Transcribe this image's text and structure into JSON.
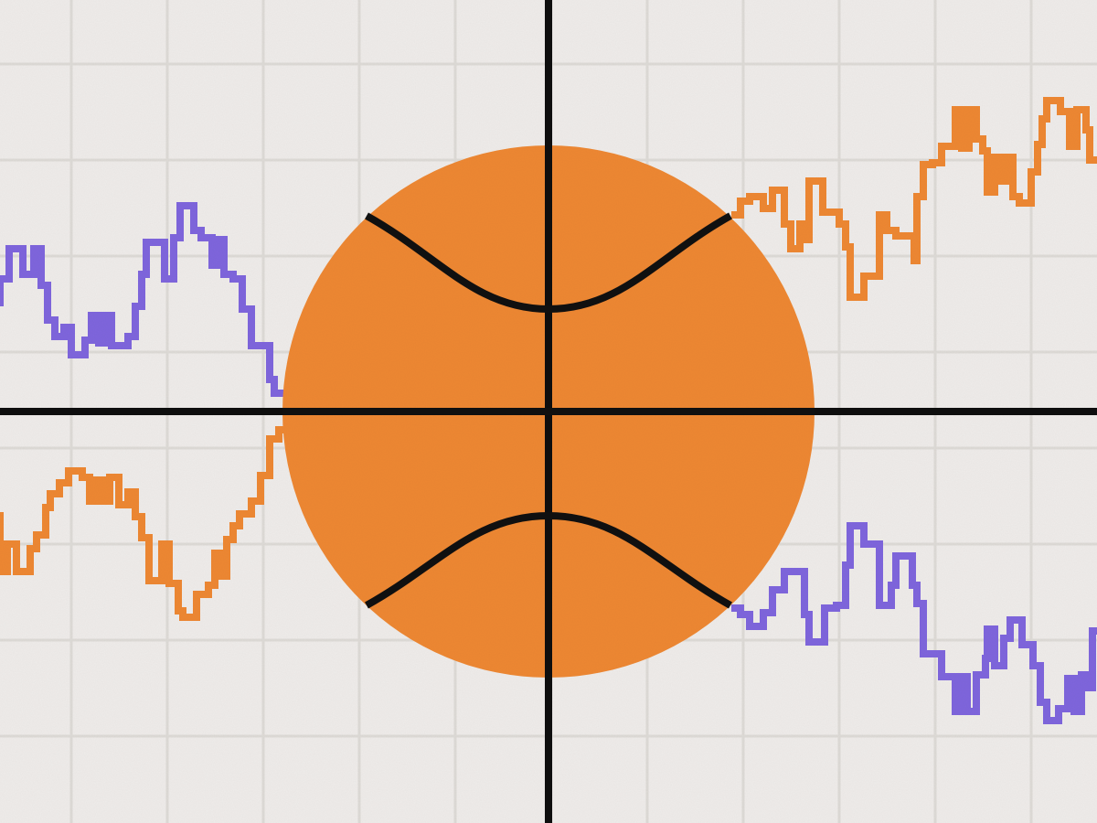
{
  "illustration": {
    "subject": "basketball-over-step-line-charts",
    "colors": {
      "background": "#efecea",
      "grid": "#dedbd7",
      "axis": "#0f0f0f",
      "ball": "#ee8833",
      "ball_seam": "#111111",
      "purple_line": "#7f66dd",
      "orange_line": "#ee8833"
    },
    "step_lines": [
      {
        "id": "top-left",
        "color": "purple"
      },
      {
        "id": "bottom-left",
        "color": "orange"
      },
      {
        "id": "top-right",
        "color": "orange"
      },
      {
        "id": "bottom-right",
        "color": "purple"
      }
    ]
  }
}
